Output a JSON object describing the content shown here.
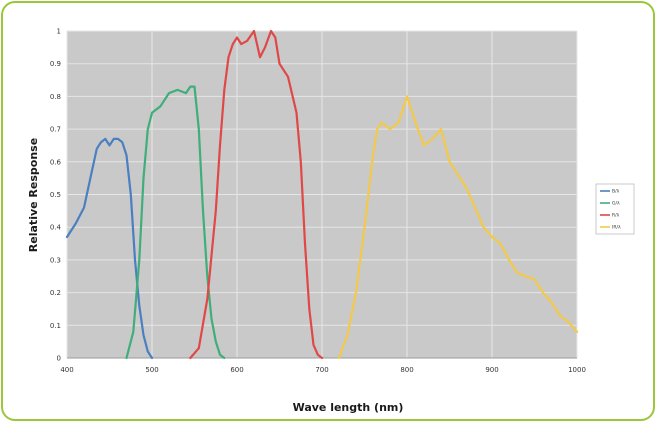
{
  "chart_data": {
    "type": "line",
    "xlabel": "Wave length (nm)",
    "ylabel": "Relative Response",
    "xlim": [
      400,
      1000
    ],
    "ylim": [
      0,
      1
    ],
    "xticks": [
      "400",
      "500",
      "600",
      "700",
      "800",
      "900",
      "1000"
    ],
    "yticks": [
      "0",
      "0.1",
      "0.2",
      "0.3",
      "0.4",
      "0.5",
      "0.6",
      "0.7",
      "0.8",
      "0.9",
      "1"
    ],
    "grid": true,
    "legend": "right",
    "series": [
      {
        "name": "B/λ",
        "color": "#4a7fc0",
        "points": [
          [
            400,
            0.37
          ],
          [
            410,
            0.41
          ],
          [
            420,
            0.46
          ],
          [
            430,
            0.58
          ],
          [
            435,
            0.64
          ],
          [
            440,
            0.66
          ],
          [
            445,
            0.67
          ],
          [
            450,
            0.65
          ],
          [
            455,
            0.67
          ],
          [
            460,
            0.67
          ],
          [
            465,
            0.66
          ],
          [
            470,
            0.62
          ],
          [
            475,
            0.5
          ],
          [
            480,
            0.3
          ],
          [
            485,
            0.16
          ],
          [
            490,
            0.07
          ],
          [
            495,
            0.02
          ],
          [
            500,
            0.0
          ]
        ]
      },
      {
        "name": "G/λ",
        "color": "#3fae7a",
        "points": [
          [
            470,
            0.0
          ],
          [
            478,
            0.08
          ],
          [
            485,
            0.3
          ],
          [
            490,
            0.55
          ],
          [
            495,
            0.7
          ],
          [
            500,
            0.75
          ],
          [
            510,
            0.77
          ],
          [
            520,
            0.81
          ],
          [
            530,
            0.82
          ],
          [
            540,
            0.81
          ],
          [
            545,
            0.83
          ],
          [
            550,
            0.83
          ],
          [
            555,
            0.7
          ],
          [
            560,
            0.45
          ],
          [
            565,
            0.25
          ],
          [
            570,
            0.12
          ],
          [
            575,
            0.05
          ],
          [
            580,
            0.01
          ],
          [
            585,
            0.0
          ]
        ]
      },
      {
        "name": "R/λ",
        "color": "#e04848",
        "points": [
          [
            545,
            0.0
          ],
          [
            555,
            0.03
          ],
          [
            565,
            0.18
          ],
          [
            575,
            0.45
          ],
          [
            580,
            0.65
          ],
          [
            585,
            0.82
          ],
          [
            590,
            0.92
          ],
          [
            595,
            0.96
          ],
          [
            600,
            0.98
          ],
          [
            605,
            0.96
          ],
          [
            612,
            0.97
          ],
          [
            620,
            1.0
          ],
          [
            627,
            0.92
          ],
          [
            633,
            0.95
          ],
          [
            640,
            1.0
          ],
          [
            645,
            0.98
          ],
          [
            650,
            0.9
          ],
          [
            660,
            0.86
          ],
          [
            670,
            0.75
          ],
          [
            675,
            0.6
          ],
          [
            680,
            0.35
          ],
          [
            685,
            0.15
          ],
          [
            690,
            0.04
          ],
          [
            695,
            0.01
          ],
          [
            700,
            0.0
          ]
        ]
      },
      {
        "name": "IR/λ",
        "color": "#f2c94a",
        "points": [
          [
            720,
            0.0
          ],
          [
            730,
            0.07
          ],
          [
            740,
            0.2
          ],
          [
            750,
            0.4
          ],
          [
            760,
            0.62
          ],
          [
            765,
            0.7
          ],
          [
            770,
            0.72
          ],
          [
            780,
            0.7
          ],
          [
            790,
            0.72
          ],
          [
            800,
            0.8
          ],
          [
            805,
            0.76
          ],
          [
            810,
            0.72
          ],
          [
            820,
            0.65
          ],
          [
            830,
            0.67
          ],
          [
            840,
            0.7
          ],
          [
            850,
            0.6
          ],
          [
            860,
            0.56
          ],
          [
            870,
            0.52
          ],
          [
            880,
            0.46
          ],
          [
            890,
            0.4
          ],
          [
            900,
            0.37
          ],
          [
            910,
            0.35
          ],
          [
            920,
            0.3
          ],
          [
            930,
            0.26
          ],
          [
            940,
            0.25
          ],
          [
            950,
            0.24
          ],
          [
            960,
            0.2
          ],
          [
            970,
            0.17
          ],
          [
            980,
            0.13
          ],
          [
            990,
            0.11
          ],
          [
            1000,
            0.08
          ]
        ]
      }
    ]
  }
}
